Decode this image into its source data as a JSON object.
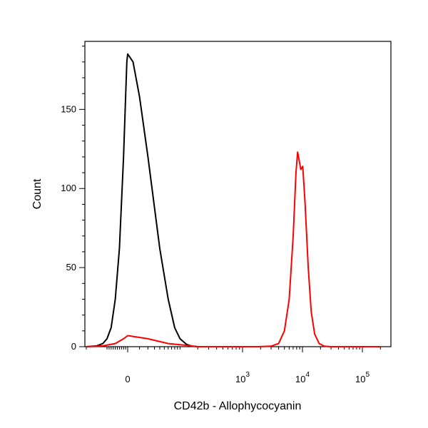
{
  "chart_data": {
    "type": "line",
    "xlabel": "CD42b - Allophycocyanin",
    "ylabel": "Count",
    "x_scale": "biexponential",
    "x_ticks": [
      {
        "value": 0,
        "base": "0",
        "exp": ""
      },
      {
        "value": 1000,
        "base": "10",
        "exp": "3"
      },
      {
        "value": 10000,
        "base": "10",
        "exp": "4"
      },
      {
        "value": 100000,
        "base": "10",
        "exp": "5"
      }
    ],
    "y_ticks": [
      {
        "value": 0,
        "label": "0"
      },
      {
        "value": 50,
        "label": "50"
      },
      {
        "value": 100,
        "label": "100"
      },
      {
        "value": 150,
        "label": "150"
      }
    ],
    "ylim": [
      0,
      193
    ],
    "series": [
      {
        "color": "#000000",
        "points": [
          [
            -200,
            0
          ],
          [
            -150,
            0.5
          ],
          [
            -120,
            2
          ],
          [
            -100,
            5
          ],
          [
            -80,
            12
          ],
          [
            -60,
            30
          ],
          [
            -40,
            62
          ],
          [
            -20,
            120
          ],
          [
            -10,
            158
          ],
          [
            -4,
            180
          ],
          [
            0,
            185
          ],
          [
            4,
            180
          ],
          [
            10,
            158
          ],
          [
            20,
            120
          ],
          [
            40,
            62
          ],
          [
            60,
            30
          ],
          [
            80,
            12
          ],
          [
            100,
            5
          ],
          [
            130,
            1.5
          ],
          [
            160,
            0.3
          ],
          [
            200,
            0
          ]
        ]
      },
      {
        "color": "#ff0000",
        "points": [
          [
            -200,
            0
          ],
          [
            -120,
            0.5
          ],
          [
            -60,
            2
          ],
          [
            -20,
            5
          ],
          [
            0,
            7
          ],
          [
            20,
            5
          ],
          [
            60,
            2
          ],
          [
            120,
            1
          ],
          [
            200,
            0
          ],
          [
            1800,
            0
          ],
          [
            3000,
            0.3
          ],
          [
            4000,
            2
          ],
          [
            5000,
            10
          ],
          [
            6000,
            30
          ],
          [
            7000,
            70
          ],
          [
            7800,
            110
          ],
          [
            8300,
            123
          ],
          [
            8800,
            118
          ],
          [
            9400,
            112
          ],
          [
            10100,
            114
          ],
          [
            11000,
            92
          ],
          [
            12500,
            50
          ],
          [
            14000,
            22
          ],
          [
            16000,
            8
          ],
          [
            19000,
            2
          ],
          [
            23000,
            0.3
          ],
          [
            30000,
            0
          ],
          [
            200000,
            0
          ]
        ]
      }
    ]
  }
}
